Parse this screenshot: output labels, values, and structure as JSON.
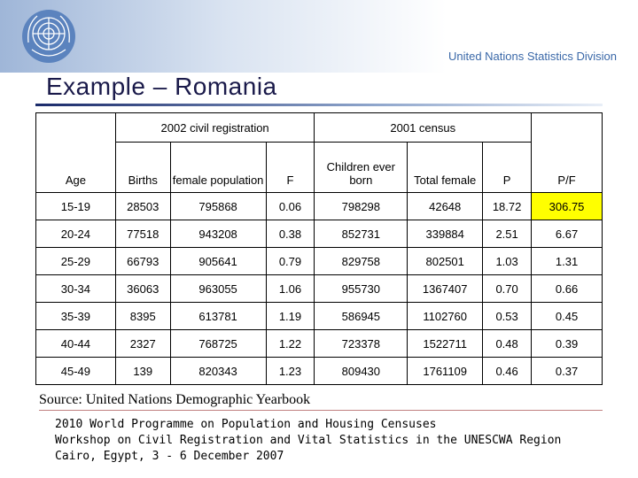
{
  "header": {
    "org": "United Nations Statistics Division"
  },
  "title": "Example – Romania",
  "table": {
    "groups": [
      "2002 civil registration",
      "2001 census"
    ],
    "columns": [
      "Age",
      "Births",
      "female population",
      "F",
      "Children ever born",
      "Total female",
      "P",
      "P/F"
    ],
    "rows": [
      [
        "15-19",
        "28503",
        "795868",
        "0.06",
        "798298",
        "42648",
        "18.72",
        "306.75"
      ],
      [
        "20-24",
        "77518",
        "943208",
        "0.38",
        "852731",
        "339884",
        "2.51",
        "6.67"
      ],
      [
        "25-29",
        "66793",
        "905641",
        "0.79",
        "829758",
        "802501",
        "1.03",
        "1.31"
      ],
      [
        "30-34",
        "36063",
        "963055",
        "1.06",
        "955730",
        "1367407",
        "0.70",
        "0.66"
      ],
      [
        "35-39",
        "8395",
        "613781",
        "1.19",
        "586945",
        "1102760",
        "0.53",
        "0.45"
      ],
      [
        "40-44",
        "2327",
        "768725",
        "1.22",
        "723378",
        "1522711",
        "0.48",
        "0.39"
      ],
      [
        "45-49",
        "139",
        "820343",
        "1.23",
        "809430",
        "1761109",
        "0.46",
        "0.37"
      ]
    ]
  },
  "source": "Source: United Nations Demographic Yearbook",
  "footer": [
    "2010 World Programme on Population and Housing Censuses",
    "Workshop on Civil Registration and Vital Statistics in the UNESCWA Region",
    "Cairo, Egypt, 3 - 6 December 2007"
  ]
}
